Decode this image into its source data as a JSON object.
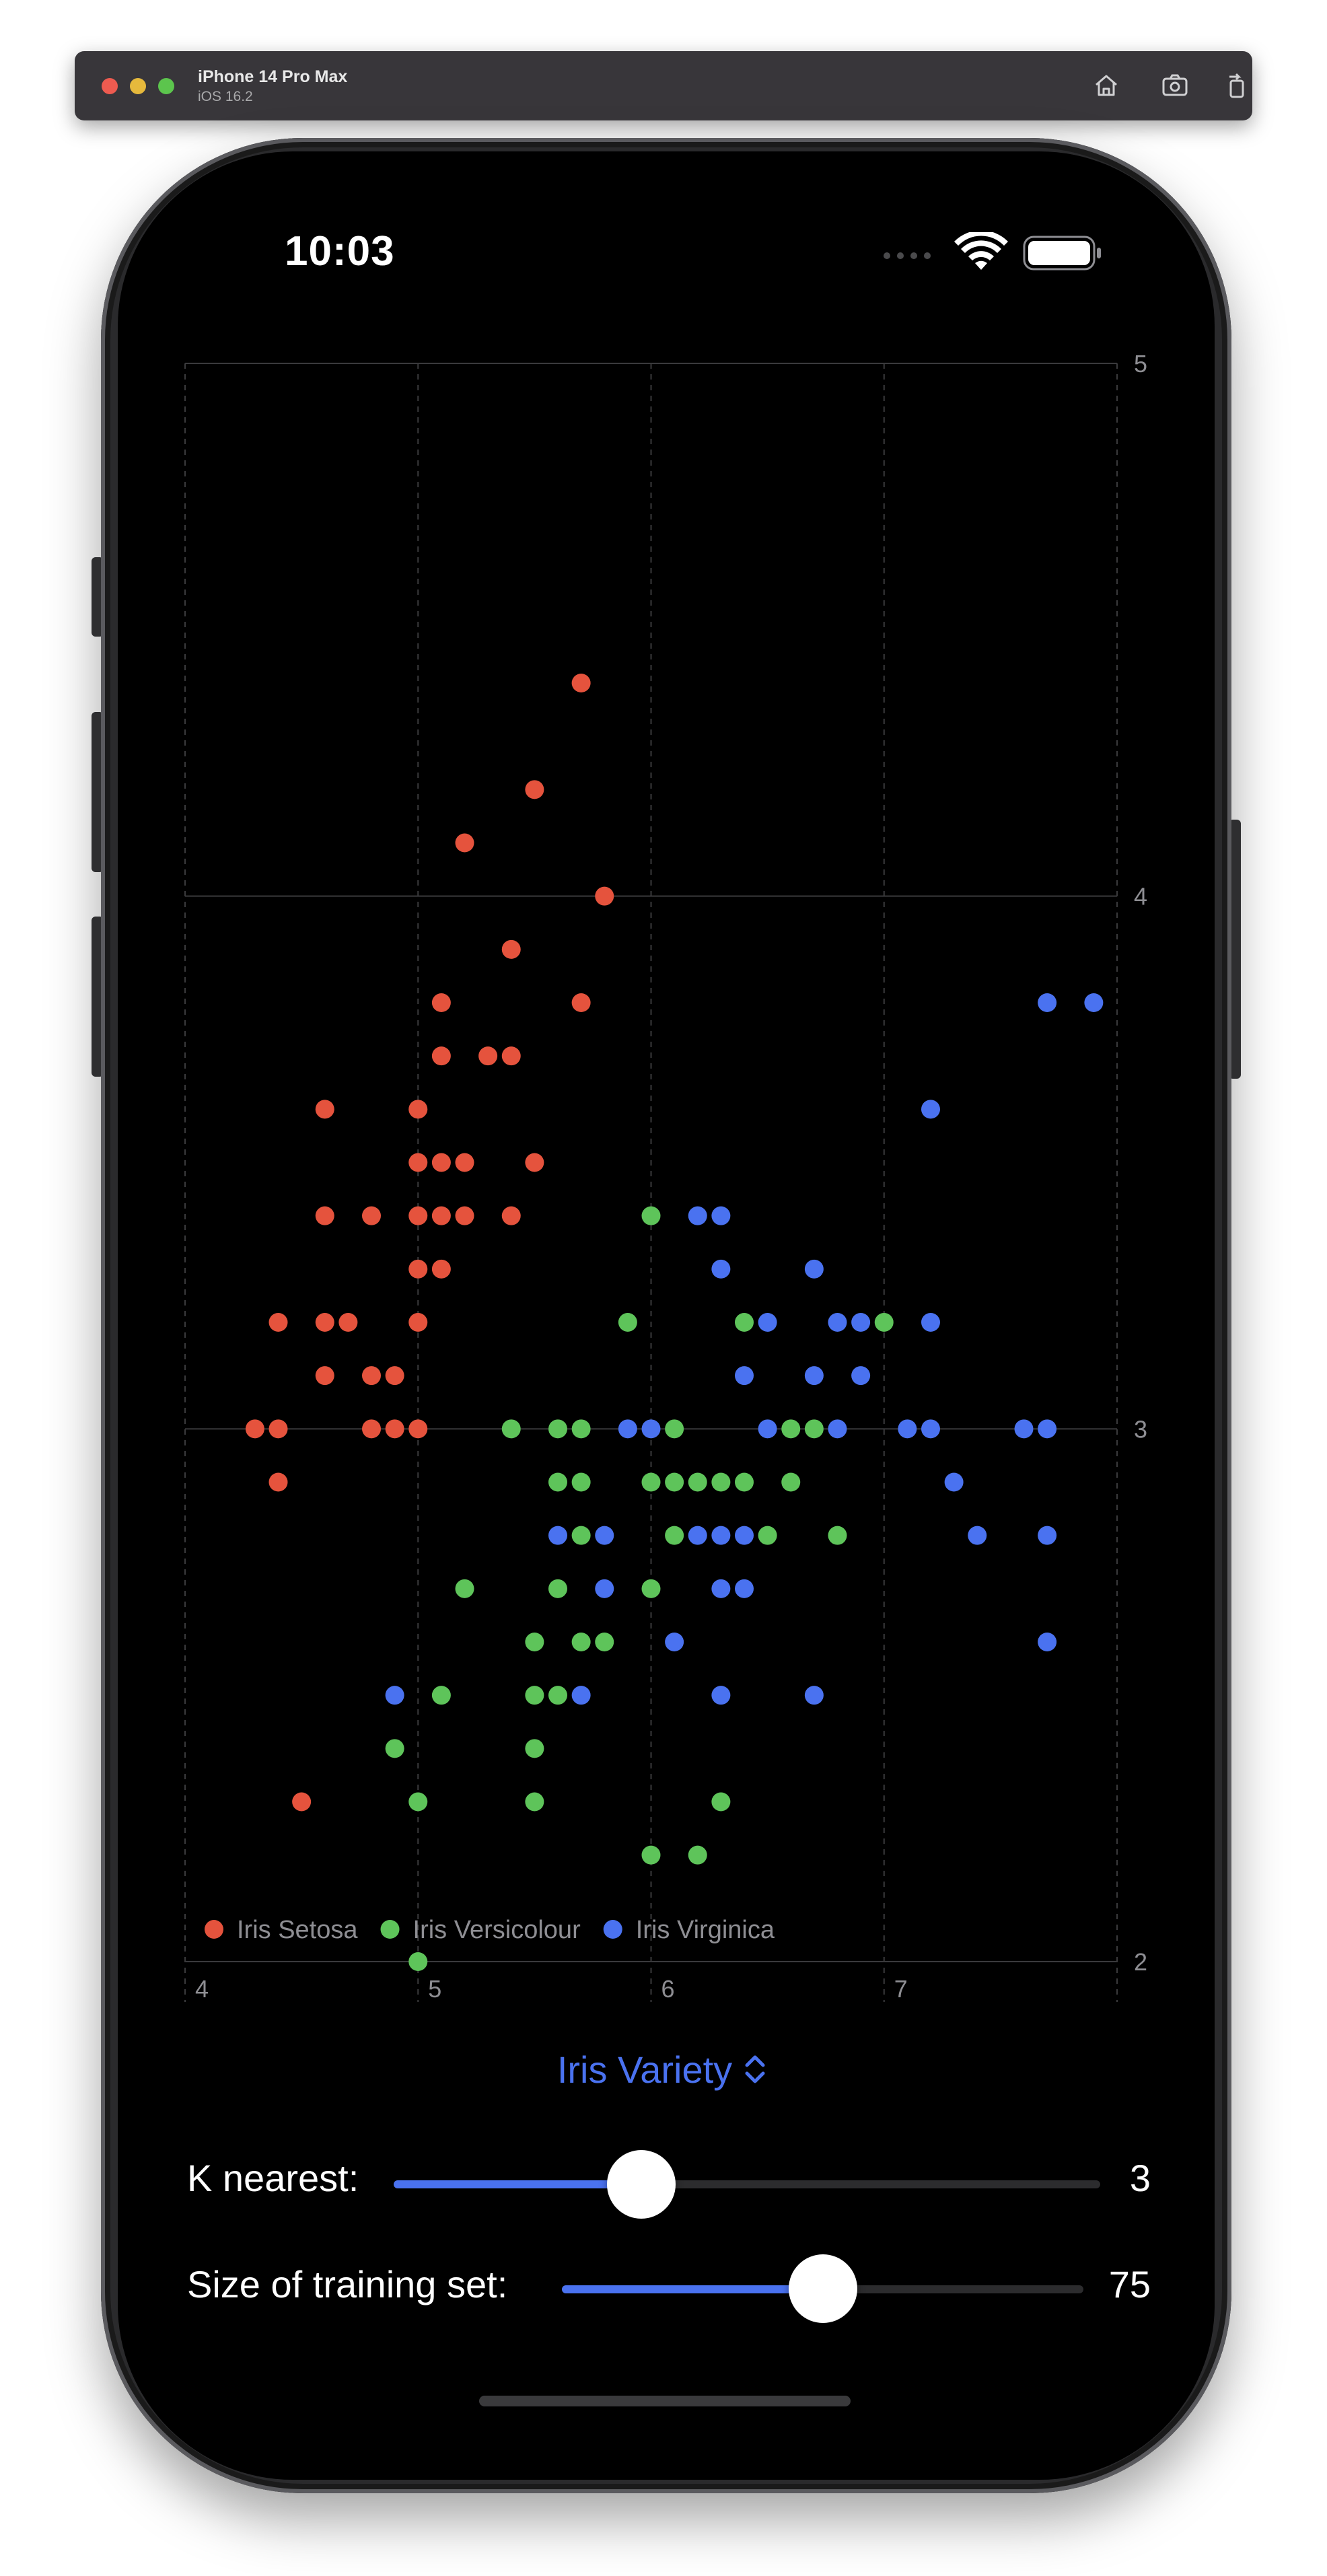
{
  "simulator": {
    "device_name": "iPhone 14 Pro Max",
    "os_version": "iOS 16.2",
    "toolbar_icons": [
      "home-icon",
      "screenshot-icon",
      "rotate-icon"
    ]
  },
  "status_bar": {
    "time": "10:03",
    "icons": [
      "wifi-icon",
      "battery-icon"
    ]
  },
  "chart_data": {
    "type": "scatter",
    "title": "",
    "xlabel": "",
    "ylabel": "",
    "xlim": [
      4,
      8
    ],
    "ylim": [
      2,
      5
    ],
    "x_ticks": [
      "4",
      "5",
      "6",
      "7"
    ],
    "y_ticks": [
      "2",
      "3",
      "4",
      "5"
    ],
    "grid": true,
    "legend_position": "bottom-left",
    "series": [
      {
        "name": "Iris Setosa",
        "color": "#e5533d",
        "points": [
          [
            5.7,
            4.4
          ],
          [
            5.5,
            4.2
          ],
          [
            5.2,
            4.1
          ],
          [
            5.8,
            4.0
          ],
          [
            5.4,
            3.9
          ],
          [
            5.1,
            3.8
          ],
          [
            5.7,
            3.8
          ],
          [
            5.1,
            3.7
          ],
          [
            5.3,
            3.7
          ],
          [
            5.4,
            3.7
          ],
          [
            4.6,
            3.6
          ],
          [
            5.0,
            3.6
          ],
          [
            5.0,
            3.5
          ],
          [
            5.1,
            3.5
          ],
          [
            5.2,
            3.5
          ],
          [
            5.5,
            3.5
          ],
          [
            4.6,
            3.4
          ],
          [
            4.8,
            3.4
          ],
          [
            5.0,
            3.4
          ],
          [
            5.1,
            3.4
          ],
          [
            5.2,
            3.4
          ],
          [
            5.4,
            3.4
          ],
          [
            5.0,
            3.3
          ],
          [
            5.1,
            3.3
          ],
          [
            4.4,
            3.2
          ],
          [
            4.6,
            3.2
          ],
          [
            4.7,
            3.2
          ],
          [
            5.0,
            3.2
          ],
          [
            4.6,
            3.1
          ],
          [
            4.8,
            3.1
          ],
          [
            4.9,
            3.1
          ],
          [
            4.3,
            3.0
          ],
          [
            4.4,
            3.0
          ],
          [
            4.8,
            3.0
          ],
          [
            4.9,
            3.0
          ],
          [
            5.0,
            3.0
          ],
          [
            4.4,
            2.9
          ],
          [
            4.5,
            2.3
          ]
        ]
      },
      {
        "name": "Iris Versicolour",
        "color": "#5ec45a",
        "points": [
          [
            6.0,
            3.4
          ],
          [
            5.9,
            3.2
          ],
          [
            6.4,
            3.2
          ],
          [
            7.0,
            3.2
          ],
          [
            5.4,
            3.0
          ],
          [
            5.6,
            3.0
          ],
          [
            5.7,
            3.0
          ],
          [
            6.1,
            3.0
          ],
          [
            6.6,
            3.0
          ],
          [
            6.7,
            3.0
          ],
          [
            5.6,
            2.9
          ],
          [
            5.7,
            2.9
          ],
          [
            6.0,
            2.9
          ],
          [
            6.1,
            2.9
          ],
          [
            6.2,
            2.9
          ],
          [
            6.3,
            2.9
          ],
          [
            6.4,
            2.9
          ],
          [
            6.6,
            2.9
          ],
          [
            5.7,
            2.8
          ],
          [
            6.1,
            2.8
          ],
          [
            6.5,
            2.8
          ],
          [
            6.8,
            2.8
          ],
          [
            5.2,
            2.7
          ],
          [
            5.6,
            2.7
          ],
          [
            6.0,
            2.7
          ],
          [
            5.5,
            2.6
          ],
          [
            5.7,
            2.6
          ],
          [
            5.8,
            2.6
          ],
          [
            5.1,
            2.5
          ],
          [
            5.5,
            2.5
          ],
          [
            5.6,
            2.5
          ],
          [
            4.9,
            2.4
          ],
          [
            5.5,
            2.4
          ],
          [
            5.0,
            2.3
          ],
          [
            5.5,
            2.3
          ],
          [
            6.3,
            2.3
          ],
          [
            6.0,
            2.2
          ],
          [
            6.2,
            2.2
          ],
          [
            5.0,
            2.0
          ]
        ]
      },
      {
        "name": "Iris Virginica",
        "color": "#4a72f0",
        "points": [
          [
            7.7,
            3.8
          ],
          [
            7.9,
            3.8
          ],
          [
            7.2,
            3.6
          ],
          [
            6.2,
            3.4
          ],
          [
            6.3,
            3.4
          ],
          [
            6.3,
            3.3
          ],
          [
            6.7,
            3.3
          ],
          [
            6.5,
            3.2
          ],
          [
            6.8,
            3.2
          ],
          [
            6.9,
            3.2
          ],
          [
            7.2,
            3.2
          ],
          [
            6.4,
            3.1
          ],
          [
            6.7,
            3.1
          ],
          [
            6.9,
            3.1
          ],
          [
            5.9,
            3.0
          ],
          [
            6.0,
            3.0
          ],
          [
            6.5,
            3.0
          ],
          [
            6.8,
            3.0
          ],
          [
            7.1,
            3.0
          ],
          [
            7.2,
            3.0
          ],
          [
            7.6,
            3.0
          ],
          [
            7.7,
            3.0
          ],
          [
            7.3,
            2.9
          ],
          [
            5.6,
            2.8
          ],
          [
            5.8,
            2.8
          ],
          [
            6.2,
            2.8
          ],
          [
            6.3,
            2.8
          ],
          [
            6.4,
            2.8
          ],
          [
            7.4,
            2.8
          ],
          [
            7.7,
            2.8
          ],
          [
            5.8,
            2.7
          ],
          [
            6.3,
            2.7
          ],
          [
            6.4,
            2.7
          ],
          [
            6.1,
            2.6
          ],
          [
            7.7,
            2.6
          ],
          [
            4.9,
            2.5
          ],
          [
            5.7,
            2.5
          ],
          [
            6.3,
            2.5
          ],
          [
            6.7,
            2.5
          ]
        ]
      }
    ]
  },
  "controls": {
    "variety_label": "Iris Variety",
    "k_nearest": {
      "label": "K nearest:",
      "value": "3",
      "fraction": 0.35
    },
    "training_size": {
      "label": "Size of training set:",
      "value": "75",
      "fraction": 0.5
    }
  }
}
